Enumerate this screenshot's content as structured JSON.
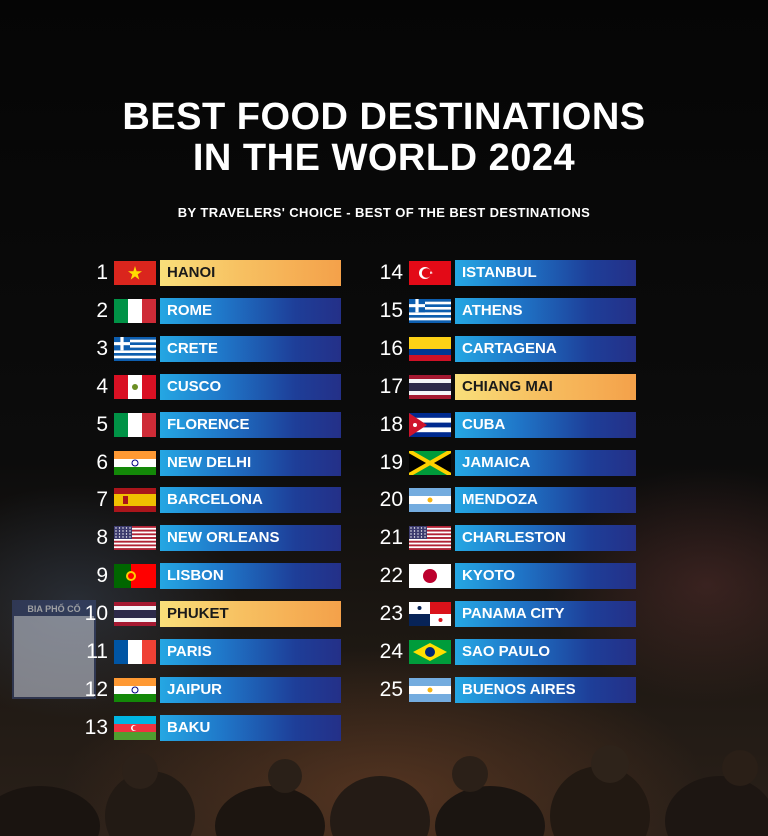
{
  "title_line1": "BEST FOOD DESTINATIONS",
  "title_line2": "IN THE WORLD 2024",
  "subtitle": "BY TRAVELERS' CHOICE - BEST OF THE BEST DESTINATIONS",
  "background_sign": "BIA PHỐ CỔ",
  "colors": {
    "bar_blue_start": "#25a7e3",
    "bar_blue_end": "#243088",
    "highlight_start": "#f9df7a",
    "highlight_end": "#f4a14a"
  },
  "entries": [
    {
      "rank": "1",
      "city": "HANOI",
      "flag": "vietnam-flag",
      "highlight": true
    },
    {
      "rank": "2",
      "city": "ROME",
      "flag": "italy-flag",
      "highlight": false
    },
    {
      "rank": "3",
      "city": "CRETE",
      "flag": "greece-flag",
      "highlight": false
    },
    {
      "rank": "4",
      "city": "CUSCO",
      "flag": "peru-flag",
      "highlight": false
    },
    {
      "rank": "5",
      "city": "FLORENCE",
      "flag": "italy-flag",
      "highlight": false
    },
    {
      "rank": "6",
      "city": "NEW DELHI",
      "flag": "india-flag",
      "highlight": false
    },
    {
      "rank": "7",
      "city": "BARCELONA",
      "flag": "spain-flag",
      "highlight": false
    },
    {
      "rank": "8",
      "city": "NEW ORLEANS",
      "flag": "usa-flag",
      "highlight": false
    },
    {
      "rank": "9",
      "city": "LISBON",
      "flag": "portugal-flag",
      "highlight": false
    },
    {
      "rank": "10",
      "city": "PHUKET",
      "flag": "thailand-flag",
      "highlight": true
    },
    {
      "rank": "11",
      "city": "PARIS",
      "flag": "france-flag",
      "highlight": false
    },
    {
      "rank": "12",
      "city": "JAIPUR",
      "flag": "india-flag",
      "highlight": false
    },
    {
      "rank": "13",
      "city": "BAKU",
      "flag": "azerbaijan-flag",
      "highlight": false
    },
    {
      "rank": "14",
      "city": "ISTANBUL",
      "flag": "turkey-flag",
      "highlight": false
    },
    {
      "rank": "15",
      "city": "ATHENS",
      "flag": "greece-flag",
      "highlight": false
    },
    {
      "rank": "16",
      "city": "CARTAGENA",
      "flag": "colombia-flag",
      "highlight": false
    },
    {
      "rank": "17",
      "city": "CHIANG MAI",
      "flag": "thailand-flag",
      "highlight": true
    },
    {
      "rank": "18",
      "city": "CUBA",
      "flag": "cuba-flag",
      "highlight": false
    },
    {
      "rank": "19",
      "city": "JAMAICA",
      "flag": "jamaica-flag",
      "highlight": false
    },
    {
      "rank": "20",
      "city": "MENDOZA",
      "flag": "argentina-flag",
      "highlight": false
    },
    {
      "rank": "21",
      "city": "CHARLESTON",
      "flag": "usa-flag",
      "highlight": false
    },
    {
      "rank": "22",
      "city": "KYOTO",
      "flag": "japan-flag",
      "highlight": false
    },
    {
      "rank": "23",
      "city": "PANAMA CITY",
      "flag": "panama-flag",
      "highlight": false
    },
    {
      "rank": "24",
      "city": "SAO PAULO",
      "flag": "brazil-flag",
      "highlight": false
    },
    {
      "rank": "25",
      "city": "BUENOS AIRES",
      "flag": "argentina-flag",
      "highlight": false
    }
  ]
}
